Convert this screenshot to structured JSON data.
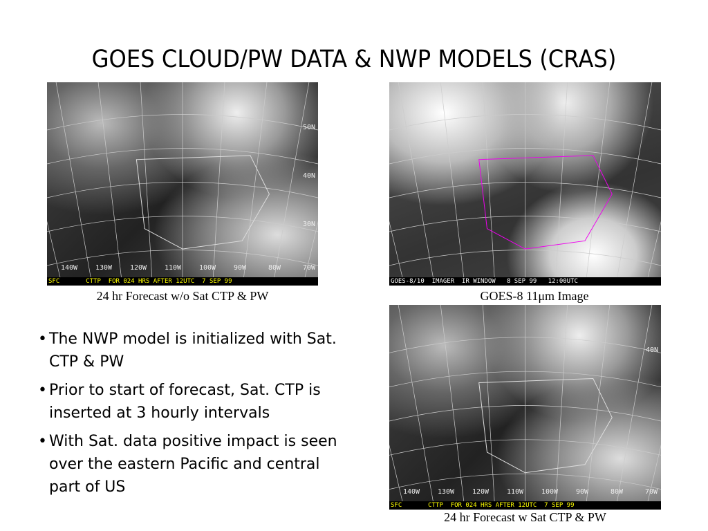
{
  "title": "GOES CLOUD/PW DATA & NWP MODELS (CRAS)",
  "images": [
    {
      "caption": "24 hr Forecast w/o Sat CTP & PW",
      "banner": "SFC       CTTP  FOR 024 HRS AFTER 12UTC  7 SEP 99",
      "lat_labels": [
        "50N",
        "40N",
        "30N"
      ],
      "lon_labels": [
        "140W",
        "130W",
        "120W",
        "110W",
        "100W",
        "90W",
        "80W",
        "70W"
      ]
    },
    {
      "caption": "GOES-8 11μm Image",
      "banner": "GOES-8/10  IMAGER  IR WINDOW   8 SEP 99   12:00UTC"
    },
    {
      "caption": "24 hr Forecast w Sat CTP & PW",
      "banner": "SFC       CTTP  FOR 024 HRS AFTER 12UTC  7 SEP 99",
      "lat_labels": [
        "40N"
      ],
      "lon_labels": [
        "140W",
        "130W",
        "120W",
        "110W",
        "100W",
        "90W",
        "80W",
        "70W"
      ]
    }
  ],
  "bullets": [
    "The NWP model is initialized with Sat. CTP & PW",
    "Prior to start of forecast, Sat. CTP is inserted at 3 hourly intervals",
    "With Sat. data positive impact is seen over the eastern Pacific and central part of US"
  ]
}
